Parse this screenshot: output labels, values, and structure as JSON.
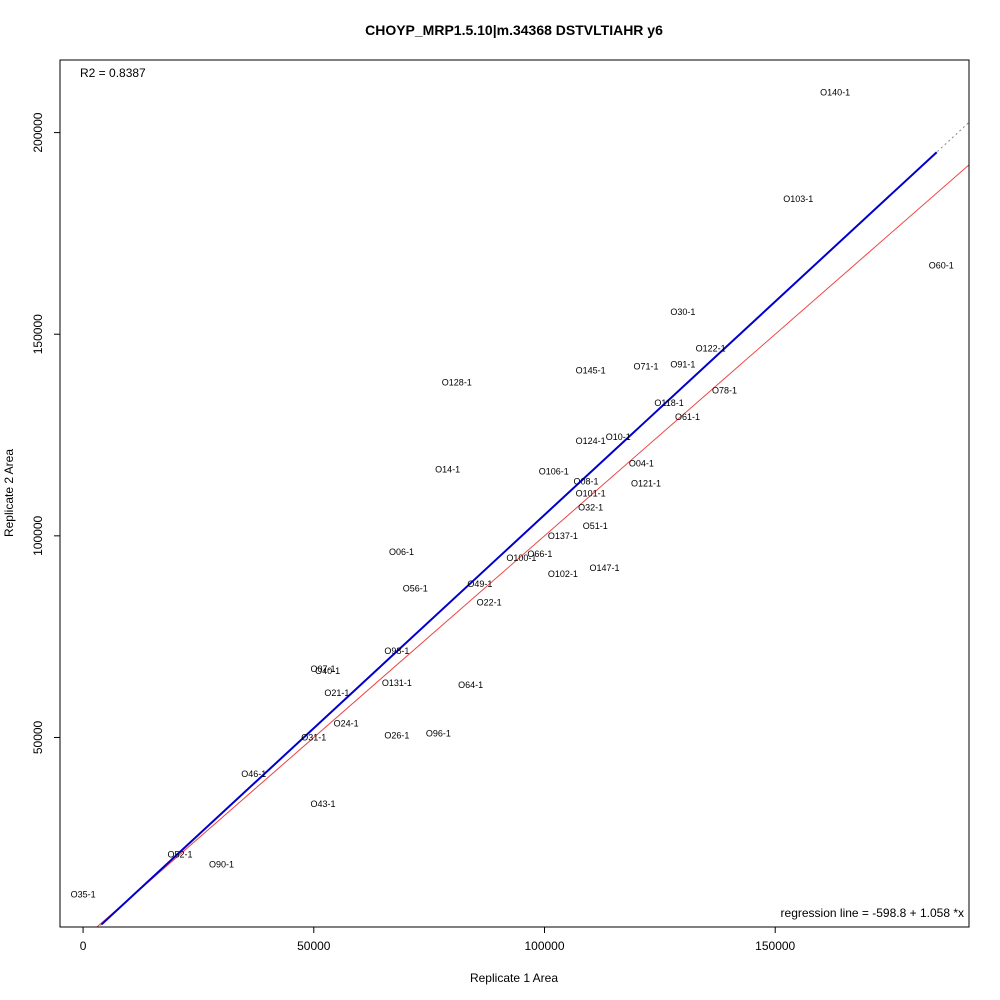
{
  "chart_data": {
    "type": "scatter",
    "title": "CHOYP_MRP1.5.10|m.34368 DSTVLTIAHR y6",
    "xlabel": "Replicate 1 Area",
    "ylabel": "Replicate 2 Area",
    "xlim": [
      -5000,
      192000
    ],
    "ylim": [
      3000,
      218000
    ],
    "x_ticks": [
      0,
      50000,
      100000,
      150000
    ],
    "x_tick_labels": [
      "0",
      "50000",
      "100000",
      "150000"
    ],
    "y_ticks": [
      50000,
      100000,
      150000,
      200000
    ],
    "y_tick_labels": [
      "50000",
      "100000",
      "150000",
      "200000"
    ],
    "r2_text": "R2 = 0.8387",
    "regression_text": "regression line = -598.8 + 1.058 *x",
    "regression": {
      "intercept": -598.8,
      "slope": 1.058,
      "x_start": 4000,
      "x_end": 185000,
      "color": "#0000cc"
    },
    "identity_line": {
      "color": "#ee4444"
    },
    "dotted_extension_color": "#888888",
    "points": [
      {
        "label": "O140-1",
        "x": 163000,
        "y": 210000
      },
      {
        "label": "O103-1",
        "x": 155000,
        "y": 183500
      },
      {
        "label": "O60-1",
        "x": 186000,
        "y": 167000
      },
      {
        "label": "O30-1",
        "x": 130000,
        "y": 155500
      },
      {
        "label": "O122-1",
        "x": 136000,
        "y": 146500
      },
      {
        "label": "O91-1",
        "x": 130000,
        "y": 142500
      },
      {
        "label": "O71-1",
        "x": 122000,
        "y": 142000
      },
      {
        "label": "O145-1",
        "x": 110000,
        "y": 141000
      },
      {
        "label": "O128-1",
        "x": 81000,
        "y": 138000
      },
      {
        "label": "O78-1",
        "x": 139000,
        "y": 136000
      },
      {
        "label": "O118-1",
        "x": 127000,
        "y": 133000
      },
      {
        "label": "O61-1",
        "x": 131000,
        "y": 129500
      },
      {
        "label": "O10-1",
        "x": 116000,
        "y": 124500
      },
      {
        "label": "O124-1",
        "x": 110000,
        "y": 123500
      },
      {
        "label": "O04-1",
        "x": 121000,
        "y": 118000
      },
      {
        "label": "O14-1",
        "x": 79000,
        "y": 116500
      },
      {
        "label": "O106-1",
        "x": 102000,
        "y": 116000
      },
      {
        "label": "O08-1",
        "x": 109000,
        "y": 113500
      },
      {
        "label": "O121-1",
        "x": 122000,
        "y": 113000
      },
      {
        "label": "O101-1",
        "x": 110000,
        "y": 110500
      },
      {
        "label": "O32-1",
        "x": 110000,
        "y": 107000
      },
      {
        "label": "O51-1",
        "x": 111000,
        "y": 102500
      },
      {
        "label": "O137-1",
        "x": 104000,
        "y": 100000
      },
      {
        "label": "O06-1",
        "x": 69000,
        "y": 96000
      },
      {
        "label": "O66-1",
        "x": 99000,
        "y": 95500
      },
      {
        "label": "O100-1",
        "x": 95000,
        "y": 94500
      },
      {
        "label": "O147-1",
        "x": 113000,
        "y": 92000
      },
      {
        "label": "O102-1",
        "x": 104000,
        "y": 90500
      },
      {
        "label": "O49-1",
        "x": 86000,
        "y": 88000
      },
      {
        "label": "O56-1",
        "x": 72000,
        "y": 87000
      },
      {
        "label": "O22-1",
        "x": 88000,
        "y": 83500
      },
      {
        "label": "O98-1",
        "x": 68000,
        "y": 71500
      },
      {
        "label": "O07-1",
        "x": 52000,
        "y": 67000
      },
      {
        "label": "O40-1",
        "x": 53000,
        "y": 66500
      },
      {
        "label": "O131-1",
        "x": 68000,
        "y": 63500
      },
      {
        "label": "O64-1",
        "x": 84000,
        "y": 63000
      },
      {
        "label": "O21-1",
        "x": 55000,
        "y": 61000
      },
      {
        "label": "O24-1",
        "x": 57000,
        "y": 53500
      },
      {
        "label": "O31-1",
        "x": 50000,
        "y": 50000
      },
      {
        "label": "O26-1",
        "x": 68000,
        "y": 50500
      },
      {
        "label": "O96-1",
        "x": 77000,
        "y": 51000
      },
      {
        "label": "O46-1",
        "x": 37000,
        "y": 41000
      },
      {
        "label": "O43-1",
        "x": 52000,
        "y": 33500
      },
      {
        "label": "O52-1",
        "x": 21000,
        "y": 21000
      },
      {
        "label": "O90-1",
        "x": 30000,
        "y": 18500
      },
      {
        "label": "O35-1",
        "x": 0,
        "y": 11000
      }
    ]
  }
}
